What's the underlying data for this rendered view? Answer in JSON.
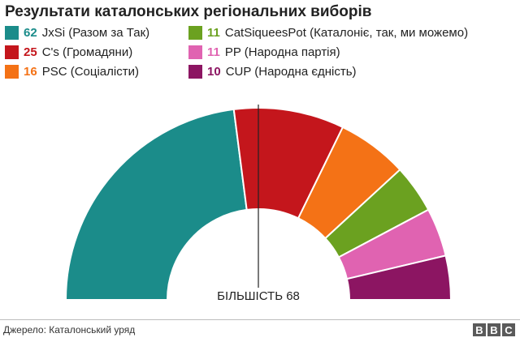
{
  "title": "Результати каталонських регіональних виборів",
  "source": "Джерело: Каталонський уряд",
  "logo": [
    "B",
    "B",
    "C"
  ],
  "chart_data": {
    "type": "pie",
    "subtype": "semicircle-parliament",
    "title": "Результати каталонських регіональних виборів",
    "total_seats": 135,
    "majority": {
      "label": "БІЛЬШІСТЬ 68",
      "value": 68
    },
    "series": [
      {
        "label": "JxSi (Разом за Так)",
        "value": 62,
        "color": "#1b8c8a"
      },
      {
        "label": "C's (Громадяни)",
        "value": 25,
        "color": "#c4161c"
      },
      {
        "label": "PSC (Соціалісти)",
        "value": 16,
        "color": "#f47216"
      },
      {
        "label": "CatSiqueesPot (Каталоніє, так, ми можемо)",
        "value": 11,
        "color": "#6ba120"
      },
      {
        "label": "PP (Народна партія)",
        "value": 11,
        "color": "#e063b1"
      },
      {
        "label": "CUP (Народна єдність)",
        "value": 10,
        "color": "#8c1562"
      }
    ]
  }
}
